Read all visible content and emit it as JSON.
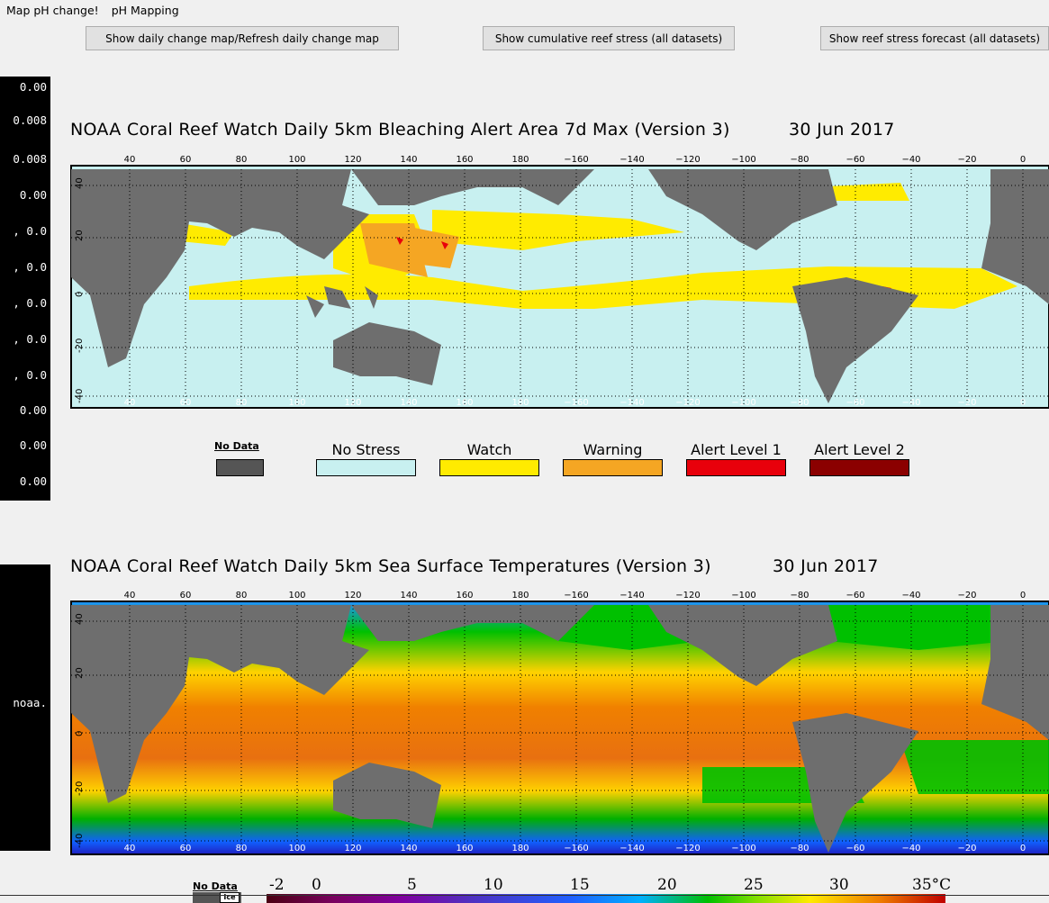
{
  "menu": {
    "item1": "Map pH change!",
    "item2": "pH Mapping"
  },
  "buttons": {
    "daily": "Show daily change map/Refresh daily change map",
    "cumulative": "Show cumulative reef stress (all datasets)",
    "forecast": "Show reef stress forecast (all datasets)"
  },
  "console_values": [
    "0.00",
    "0.008",
    "0.008",
    "0.00",
    ", 0.0",
    ", 0.0",
    ", 0.0",
    ", 0.0",
    ", 0.0",
    "0.00",
    "0.00",
    "0.00"
  ],
  "console2_text": "noaa.",
  "map1": {
    "title": "NOAA Coral Reef Watch Daily 5km Bleaching Alert Area 7d Max (Version 3)",
    "date": "30 Jun 2017",
    "legend": [
      {
        "label": "No Data",
        "color": "#555555"
      },
      {
        "label": "No Stress",
        "color": "#c8f0f0"
      },
      {
        "label": "Watch",
        "color": "#ffeb00"
      },
      {
        "label": "Warning",
        "color": "#f5a623"
      },
      {
        "label": "Alert Level 1",
        "color": "#e8000b"
      },
      {
        "label": "Alert Level 2",
        "color": "#8b0000"
      }
    ]
  },
  "map2": {
    "title": "NOAA Coral Reef Watch Daily 5km Sea Surface Temperatures (Version 3)",
    "date": "30 Jun 2017",
    "legend_nodata": "No Data",
    "legend_ice": "Ice",
    "scale_labels": [
      "-2",
      "0",
      "5",
      "10",
      "15",
      "20",
      "25",
      "30",
      "35°C"
    ]
  },
  "lon_ticks": [
    "40",
    "60",
    "80",
    "100",
    "120",
    "140",
    "160",
    "180",
    "−160",
    "−140",
    "−120",
    "−100",
    "−80",
    "−60",
    "−40",
    "−20",
    "0"
  ],
  "lat_ticks": [
    "40",
    "20",
    "0",
    "-20",
    "-40"
  ],
  "colors": {
    "ocean_nostress": "#c8f0f0",
    "land": "#6e6e6e",
    "watch": "#ffeb00",
    "warning": "#f5a623"
  }
}
